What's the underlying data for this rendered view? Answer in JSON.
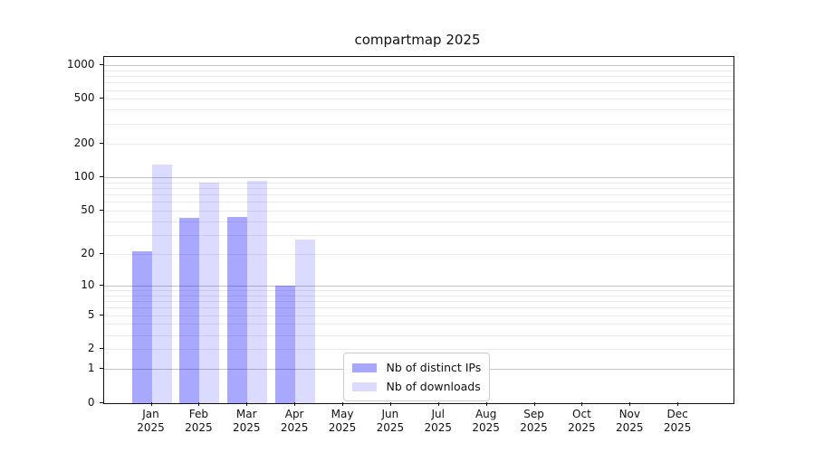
{
  "chart_data": {
    "type": "bar",
    "title": "compartmap 2025",
    "categories": [
      {
        "month": "Jan",
        "year": "2025"
      },
      {
        "month": "Feb",
        "year": "2025"
      },
      {
        "month": "Mar",
        "year": "2025"
      },
      {
        "month": "Apr",
        "year": "2025"
      },
      {
        "month": "May",
        "year": "2025"
      },
      {
        "month": "Jun",
        "year": "2025"
      },
      {
        "month": "Jul",
        "year": "2025"
      },
      {
        "month": "Aug",
        "year": "2025"
      },
      {
        "month": "Sep",
        "year": "2025"
      },
      {
        "month": "Oct",
        "year": "2025"
      },
      {
        "month": "Nov",
        "year": "2025"
      },
      {
        "month": "Dec",
        "year": "2025"
      }
    ],
    "series": [
      {
        "name": "Nb of distinct IPs",
        "color": "rgba(0,0,255,0.34)",
        "values": [
          21,
          43,
          44,
          10,
          0,
          0,
          0,
          0,
          0,
          0,
          0,
          0
        ]
      },
      {
        "name": "Nb of downloads",
        "color": "rgba(0,0,255,0.14)",
        "values": [
          131,
          90,
          92,
          27,
          0,
          0,
          0,
          0,
          0,
          0,
          0,
          0
        ]
      }
    ],
    "y_axis": {
      "scale": "log1p",
      "tick_labels": [
        1000,
        500,
        200,
        100,
        50,
        20,
        10,
        5,
        2,
        1,
        0
      ],
      "major_gridlines": [
        1,
        10,
        100,
        1000
      ],
      "minor_gridlines": [
        2,
        3,
        4,
        5,
        6,
        7,
        8,
        9,
        20,
        30,
        40,
        50,
        60,
        70,
        80,
        90,
        200,
        300,
        400,
        500,
        600,
        700,
        800,
        900
      ],
      "ylim": [
        0,
        1180
      ]
    },
    "legend_position": "lower-center",
    "grid": true
  }
}
